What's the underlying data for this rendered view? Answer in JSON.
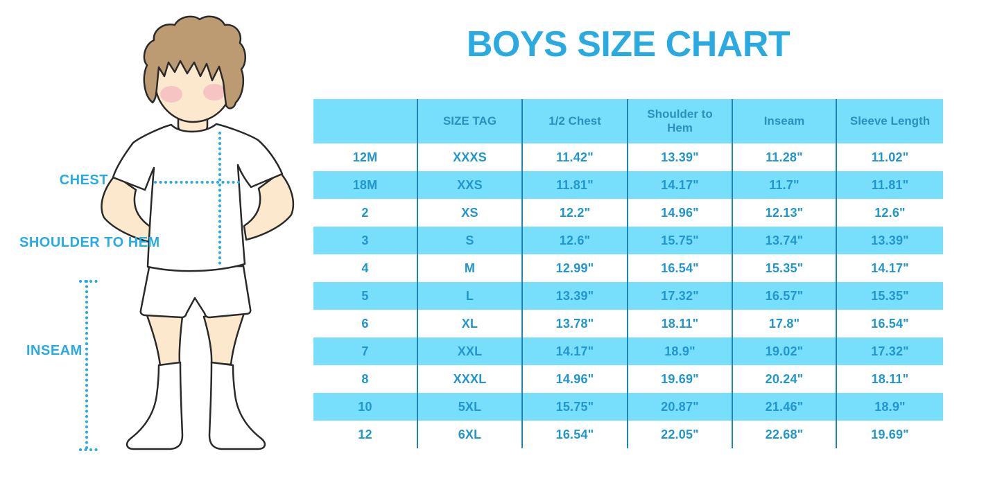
{
  "title": "BOYS SIZE CHART",
  "figure": {
    "labels": {
      "chest": "CHEST",
      "shoulder_to_hem": "SHOULDER TO HEM",
      "inseam": "INSEAM"
    }
  },
  "colors": {
    "accent_blue": "#29ABE2",
    "stripe_blue": "#77DFFB",
    "divider_blue": "#1C84B6",
    "header_text_blue": "#2E8FBE",
    "cell_text_blue": "#2196CE",
    "hair_brown": "#BC9A72",
    "skin": "#FBE8CD",
    "blush_pink": "#F3ADBD"
  },
  "chart_data": {
    "type": "table",
    "title": "BOYS SIZE CHART",
    "units": "inches",
    "columns": [
      "",
      "SIZE TAG",
      "1/2 Chest",
      "Shoulder to Hem",
      "Inseam",
      "Sleeve Length"
    ],
    "rows": [
      [
        "12M",
        "XXXS",
        "11.42\"",
        "13.39\"",
        "11.28\"",
        "11.02\""
      ],
      [
        "18M",
        "XXS",
        "11.81\"",
        "14.17\"",
        "11.7\"",
        "11.81\""
      ],
      [
        "2",
        "XS",
        "12.2\"",
        "14.96\"",
        "12.13\"",
        "12.6\""
      ],
      [
        "3",
        "S",
        "12.6\"",
        "15.75\"",
        "13.74\"",
        "13.39\""
      ],
      [
        "4",
        "M",
        "12.99\"",
        "16.54\"",
        "15.35\"",
        "14.17\""
      ],
      [
        "5",
        "L",
        "13.39\"",
        "17.32\"",
        "16.57\"",
        "15.35\""
      ],
      [
        "6",
        "XL",
        "13.78\"",
        "18.11\"",
        "17.8\"",
        "16.54\""
      ],
      [
        "7",
        "XXL",
        "14.17\"",
        "18.9\"",
        "19.02\"",
        "17.32\""
      ],
      [
        "8",
        "XXXL",
        "14.96\"",
        "19.69\"",
        "20.24\"",
        "18.11\""
      ],
      [
        "10",
        "5XL",
        "15.75\"",
        "20.87\"",
        "21.46\"",
        "18.9\""
      ],
      [
        "12",
        "6XL",
        "16.54\"",
        "22.05\"",
        "22.68\"",
        "19.69\""
      ]
    ]
  }
}
